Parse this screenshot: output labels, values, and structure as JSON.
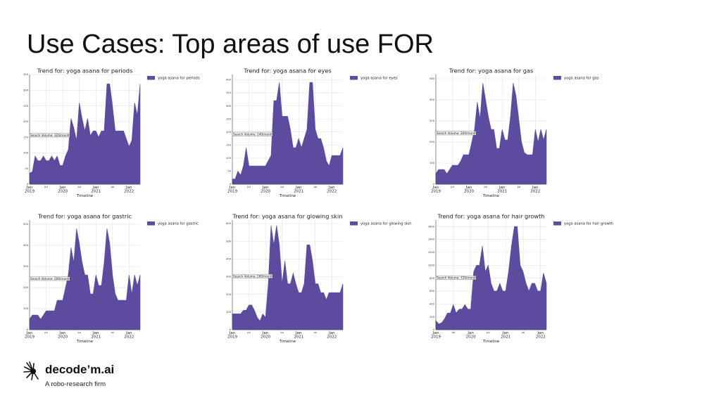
{
  "slide": {
    "title": "Use Cases: Top areas of use FOR"
  },
  "brand": {
    "name": "decode’m.ai",
    "tagline": "A robo-research firm",
    "logo_icon": "robot-hand-logo-icon"
  },
  "colors": {
    "series_fill": "#5c4b9e",
    "grid": "#dddddd",
    "axis": "#444444"
  },
  "chart_data": [
    {
      "type": "area",
      "title": "Trend for: yoga asana for periods",
      "xlabel": "Timeline",
      "series": [
        {
          "name": "yoga asana for periods"
        }
      ],
      "annotation": "Search Volume: 320/month",
      "annotation_value": 155,
      "ylim": [
        0,
        350
      ],
      "yticks": [
        0,
        50,
        100,
        150,
        200,
        250,
        300,
        350
      ],
      "x_start": "2019-01",
      "x_major_ticks": [
        {
          "i": 0,
          "label": "Jan\n2019"
        },
        {
          "i": 12,
          "label": "Jan\n2020"
        },
        {
          "i": 24,
          "label": "Jan\n2021"
        },
        {
          "i": 36,
          "label": "Jan\n2022"
        }
      ],
      "x_minor_ticks": [
        {
          "i": 6,
          "label": "Jul"
        },
        {
          "i": 18,
          "label": "Jul"
        },
        {
          "i": 30,
          "label": "Jul"
        }
      ],
      "values": [
        35,
        40,
        90,
        75,
        75,
        90,
        75,
        75,
        90,
        75,
        90,
        60,
        60,
        90,
        110,
        210,
        180,
        140,
        260,
        210,
        170,
        210,
        155,
        170,
        170,
        150,
        170,
        170,
        320,
        320,
        250,
        170,
        170,
        170,
        170,
        145,
        120,
        140,
        260,
        220,
        320
      ]
    },
    {
      "type": "area",
      "title": "Trend for: yoga asana for eyes",
      "xlabel": "Timeline",
      "series": [
        {
          "name": "yoga asana for eyes"
        }
      ],
      "annotation": "Search Volume: 140/month",
      "annotation_value": 190,
      "ylim": [
        0,
        420
      ],
      "yticks": [
        0,
        50,
        100,
        150,
        200,
        250,
        300,
        350,
        400
      ],
      "x_start": "2019-01",
      "x_major_ticks": [
        {
          "i": 0,
          "label": "Jan\n2019"
        },
        {
          "i": 12,
          "label": "Jan\n2020"
        },
        {
          "i": 24,
          "label": "Jan\n2021"
        },
        {
          "i": 36,
          "label": "Jan\n2022"
        }
      ],
      "x_minor_ticks": [
        {
          "i": 6,
          "label": "Jul"
        },
        {
          "i": 18,
          "label": "Jul"
        },
        {
          "i": 30,
          "label": "Jul"
        }
      ],
      "values": [
        20,
        20,
        50,
        35,
        70,
        140,
        70,
        70,
        70,
        70,
        70,
        70,
        70,
        90,
        110,
        320,
        320,
        390,
        260,
        260,
        260,
        210,
        140,
        140,
        175,
        140,
        175,
        210,
        390,
        390,
        210,
        175,
        175,
        140,
        90,
        70,
        110,
        110,
        110,
        110,
        140
      ]
    },
    {
      "type": "area",
      "title": "Trend for: yoga asana for gas",
      "xlabel": "Timeline",
      "series": [
        {
          "name": "yoga asana for gas"
        }
      ],
      "annotation": "Search Volume: 260/month",
      "annotation_value": 240,
      "ylim": [
        0,
        520
      ],
      "yticks": [
        0,
        100,
        200,
        300,
        400,
        500
      ],
      "x_start": "2019-01",
      "x_major_ticks": [
        {
          "i": 0,
          "label": "Jan\n2019"
        },
        {
          "i": 12,
          "label": "Jan\n2020"
        },
        {
          "i": 24,
          "label": "Jan\n2021"
        },
        {
          "i": 36,
          "label": "Jan\n2022"
        }
      ],
      "x_minor_ticks": [
        {
          "i": 6,
          "label": "Jul"
        },
        {
          "i": 18,
          "label": "Jul"
        },
        {
          "i": 30,
          "label": "Jul"
        }
      ],
      "values": [
        50,
        70,
        70,
        70,
        50,
        70,
        90,
        90,
        90,
        110,
        140,
        140,
        140,
        200,
        260,
        390,
        310,
        480,
        400,
        320,
        260,
        260,
        170,
        170,
        260,
        210,
        210,
        320,
        480,
        420,
        310,
        200,
        150,
        140,
        140,
        140,
        260,
        200,
        260,
        210,
        260
      ]
    },
    {
      "type": "area",
      "title": "Trend for: yoga asana for gastric",
      "xlabel": "Timeline",
      "series": [
        {
          "name": "yoga asana for gastric"
        }
      ],
      "annotation": "Search Volume: 260/month",
      "annotation_value": 240,
      "ylim": [
        0,
        520
      ],
      "yticks": [
        0,
        100,
        200,
        300,
        400,
        500
      ],
      "x_start": "2019-01",
      "x_major_ticks": [
        {
          "i": 0,
          "label": "Jan\n2019"
        },
        {
          "i": 12,
          "label": "Jan\n2020"
        },
        {
          "i": 24,
          "label": "Jan\n2021"
        },
        {
          "i": 36,
          "label": "Jan\n2022"
        }
      ],
      "x_minor_ticks": [
        {
          "i": 6,
          "label": "Jul"
        },
        {
          "i": 18,
          "label": "Jul"
        },
        {
          "i": 30,
          "label": "Jul"
        }
      ],
      "values": [
        50,
        70,
        70,
        70,
        50,
        70,
        90,
        90,
        90,
        90,
        140,
        140,
        140,
        200,
        260,
        390,
        320,
        480,
        410,
        320,
        260,
        260,
        170,
        170,
        260,
        210,
        210,
        320,
        480,
        410,
        260,
        170,
        140,
        140,
        140,
        140,
        260,
        170,
        260,
        210,
        260
      ]
    },
    {
      "type": "area",
      "title": "Trend for: yoga asana for glowing skin",
      "xlabel": "Timeline",
      "series": [
        {
          "name": "yoga asana for glowing skin"
        }
      ],
      "annotation": "Search Volume: 260/month",
      "annotation_value": 300,
      "ylim": [
        0,
        620
      ],
      "yticks": [
        0,
        100,
        200,
        300,
        400,
        500,
        600
      ],
      "x_start": "2019-01",
      "x_major_ticks": [
        {
          "i": 0,
          "label": "Jan\n2019"
        },
        {
          "i": 12,
          "label": "Jan\n2020"
        },
        {
          "i": 24,
          "label": "Jan\n2021"
        },
        {
          "i": 36,
          "label": "Jan\n2022"
        }
      ],
      "x_minor_ticks": [
        {
          "i": 6,
          "label": "Jul"
        },
        {
          "i": 18,
          "label": "Jul"
        },
        {
          "i": 30,
          "label": "Jul"
        }
      ],
      "values": [
        90,
        90,
        90,
        90,
        110,
        110,
        140,
        140,
        110,
        70,
        50,
        90,
        70,
        260,
        590,
        480,
        590,
        480,
        260,
        390,
        260,
        260,
        320,
        260,
        210,
        210,
        260,
        480,
        480,
        390,
        260,
        260,
        210,
        210,
        170,
        210,
        210,
        210,
        210,
        210,
        260
      ]
    },
    {
      "type": "area",
      "title": "Trend for: yoga asana for hair growth",
      "xlabel": "Timeline",
      "series": [
        {
          "name": "yoga asana for hair growth"
        }
      ],
      "annotation": "Search Volume: 720/month",
      "annotation_value": 800,
      "ylim": [
        0,
        1700
      ],
      "yticks": [
        0,
        200,
        400,
        600,
        800,
        1000,
        1200,
        1400,
        1600
      ],
      "x_start": "2019-01",
      "x_major_ticks": [
        {
          "i": 0,
          "label": "Jan\n2019"
        },
        {
          "i": 12,
          "label": "Jan\n2020"
        },
        {
          "i": 24,
          "label": "Jan\n2021"
        },
        {
          "i": 36,
          "label": "Jan\n2022"
        }
      ],
      "x_minor_ticks": [
        {
          "i": 6,
          "label": "Jul"
        },
        {
          "i": 18,
          "label": "Jul"
        },
        {
          "i": 30,
          "label": "Jul"
        }
      ],
      "values": [
        140,
        90,
        110,
        170,
        260,
        260,
        390,
        260,
        320,
        320,
        390,
        320,
        320,
        900,
        1000,
        1000,
        1300,
        900,
        1000,
        720,
        600,
        600,
        720,
        600,
        600,
        900,
        1300,
        1600,
        1600,
        1000,
        900,
        720,
        600,
        720,
        720,
        600,
        600,
        880,
        720
      ]
    }
  ]
}
